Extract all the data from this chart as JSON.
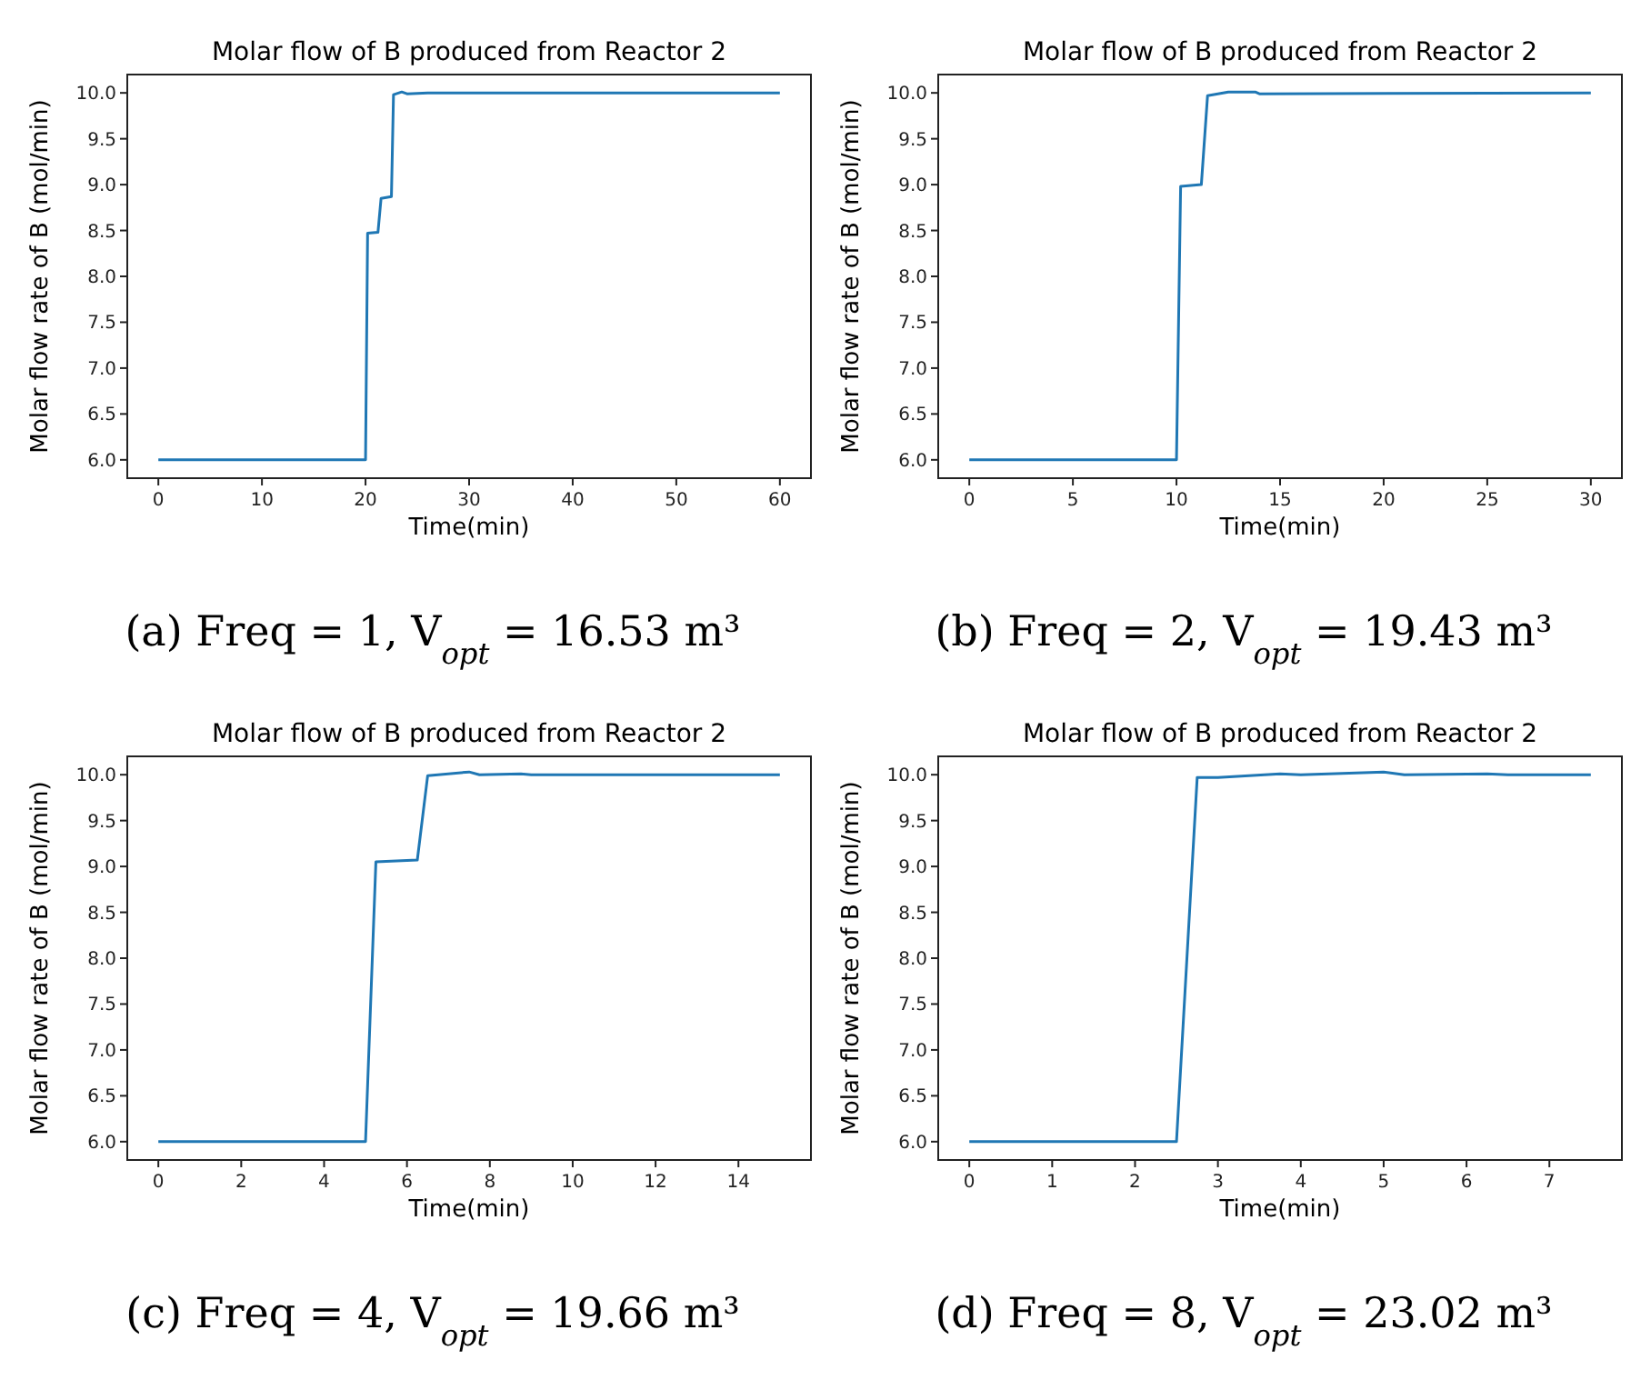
{
  "chart_data": [
    {
      "type": "line",
      "title": "Molar flow of B produced from Reactor 2",
      "xlabel": "Time(min)",
      "ylabel": "Molar flow rate of B (mol/min)",
      "xlim": [
        -3,
        63
      ],
      "ylim": [
        5.8,
        10.2
      ],
      "xticks": [
        0,
        10,
        20,
        30,
        40,
        50,
        60
      ],
      "yticks": [
        {
          "value": 6,
          "label": "6.0"
        },
        {
          "value": 6.5,
          "label": "6.5"
        },
        {
          "value": 7,
          "label": "7.0"
        },
        {
          "value": 7.5,
          "label": "7.5"
        },
        {
          "value": 8,
          "label": "8.0"
        },
        {
          "value": 8.5,
          "label": "8.5"
        },
        {
          "value": 9,
          "label": "9.0"
        },
        {
          "value": 9.5,
          "label": "9.5"
        },
        {
          "value": 10,
          "label": "10.0"
        }
      ],
      "grid": false,
      "annotations": [
        "(a) Freq = 1, V$_{opt}$ = 16.53 m³"
      ],
      "series": [
        {
          "color": "#1f77b4",
          "x": [
            0,
            20,
            20.2,
            21.2,
            21.5,
            22.5,
            22.7,
            23.5,
            24,
            26,
            60
          ],
          "values": [
            6,
            6,
            8.47,
            8.48,
            8.85,
            8.87,
            9.98,
            10.01,
            9.99,
            10,
            10
          ]
        }
      ]
    },
    {
      "type": "line",
      "title": "Molar flow of B produced from Reactor 2",
      "xlabel": "Time(min)",
      "ylabel": "Molar flow rate of B (mol/min)",
      "xlim": [
        -1.5,
        31.5
      ],
      "ylim": [
        5.8,
        10.2
      ],
      "xticks": [
        0,
        5,
        10,
        15,
        20,
        25,
        30
      ],
      "yticks": [
        {
          "value": 6,
          "label": "6.0"
        },
        {
          "value": 6.5,
          "label": "6.5"
        },
        {
          "value": 7,
          "label": "7.0"
        },
        {
          "value": 7.5,
          "label": "7.5"
        },
        {
          "value": 8,
          "label": "8.0"
        },
        {
          "value": 8.5,
          "label": "8.5"
        },
        {
          "value": 9,
          "label": "9.0"
        },
        {
          "value": 9.5,
          "label": "9.5"
        },
        {
          "value": 10,
          "label": "10.0"
        }
      ],
      "grid": false,
      "annotations": [
        "(b) Freq = 2, V$_{opt}$ = 19.43 m³"
      ],
      "series": [
        {
          "color": "#1f77b4",
          "x": [
            0,
            10,
            10.2,
            11.2,
            11.5,
            12.5,
            13.8,
            14,
            30
          ],
          "values": [
            6,
            6,
            8.98,
            9,
            9.97,
            10.01,
            10.01,
            9.99,
            10
          ]
        }
      ]
    },
    {
      "type": "line",
      "title": "Molar flow of B produced from Reactor 2",
      "xlabel": "Time(min)",
      "ylabel": "Molar flow rate of B (mol/min)",
      "xlim": [
        -0.75,
        15.75
      ],
      "ylim": [
        5.8,
        10.2
      ],
      "xticks": [
        0,
        2,
        4,
        6,
        8,
        10,
        12,
        14
      ],
      "yticks": [
        {
          "value": 6,
          "label": "6.0"
        },
        {
          "value": 6.5,
          "label": "6.5"
        },
        {
          "value": 7,
          "label": "7.0"
        },
        {
          "value": 7.5,
          "label": "7.5"
        },
        {
          "value": 8,
          "label": "8.0"
        },
        {
          "value": 8.5,
          "label": "8.5"
        },
        {
          "value": 9,
          "label": "9.0"
        },
        {
          "value": 9.5,
          "label": "9.5"
        },
        {
          "value": 10,
          "label": "10.0"
        }
      ],
      "grid": false,
      "annotations": [
        "(c) Freq = 4, V$_{opt}$ = 19.66 m³"
      ],
      "series": [
        {
          "color": "#1f77b4",
          "x": [
            0,
            5,
            5.25,
            6.25,
            6.5,
            7.5,
            7.75,
            8.75,
            9,
            15
          ],
          "values": [
            6,
            6,
            9.05,
            9.07,
            9.99,
            10.03,
            10,
            10.01,
            10,
            10
          ]
        }
      ]
    },
    {
      "type": "line",
      "title": "Molar flow of B produced from Reactor 2",
      "xlabel": "Time(min)",
      "ylabel": "Molar flow rate of B (mol/min)",
      "xlim": [
        -0.375,
        7.875
      ],
      "ylim": [
        5.8,
        10.2
      ],
      "xticks": [
        0,
        1,
        2,
        3,
        4,
        5,
        6,
        7
      ],
      "yticks": [
        {
          "value": 6,
          "label": "6.0"
        },
        {
          "value": 6.5,
          "label": "6.5"
        },
        {
          "value": 7,
          "label": "7.0"
        },
        {
          "value": 7.5,
          "label": "7.5"
        },
        {
          "value": 8,
          "label": "8.0"
        },
        {
          "value": 8.5,
          "label": "8.5"
        },
        {
          "value": 9,
          "label": "9.0"
        },
        {
          "value": 9.5,
          "label": "9.5"
        },
        {
          "value": 10,
          "label": "10.0"
        }
      ],
      "grid": false,
      "annotations": [
        "(d) Freq = 8, V$_{opt}$ = 23.02 m³"
      ],
      "series": [
        {
          "color": "#1f77b4",
          "x": [
            0,
            2.5,
            2.75,
            3,
            3.75,
            4,
            5,
            5.25,
            6.25,
            6.5,
            7.5
          ],
          "values": [
            6,
            6,
            9.97,
            9.97,
            10.01,
            10,
            10.03,
            10,
            10.01,
            10,
            10
          ]
        }
      ]
    }
  ]
}
